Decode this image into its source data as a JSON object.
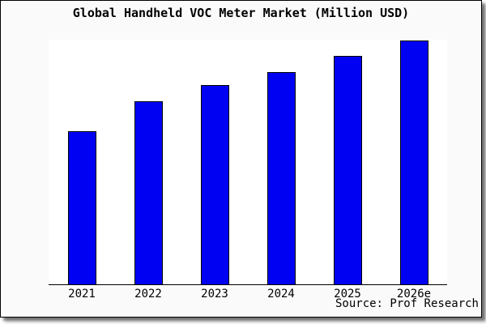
{
  "chart": {
    "title": "Global Handheld VOC Meter Market (Million USD)",
    "source": "Source: Prof Research"
  },
  "colors": {
    "bar_fill": "#0000f2",
    "bar_border": "#000000",
    "frame_background": "#fafafa",
    "plot_background": "#ffffff",
    "axis": "#000000"
  },
  "chart_data": {
    "type": "bar",
    "title": "Global Handheld VOC Meter Market (Million USD)",
    "categories": [
      "2021",
      "2022",
      "2023",
      "2024",
      "2025",
      "2026e"
    ],
    "values": [
      62.8,
      75.2,
      81.7,
      87.2,
      93.7,
      100
    ],
    "units": "relative bar height, % of 2026e (y-axis has no tick labels)",
    "xlabel": "",
    "ylabel": "",
    "ylim": [
      0,
      101
    ],
    "grid": false,
    "legend": false,
    "annotations": [
      "Source: Prof Research"
    ]
  }
}
